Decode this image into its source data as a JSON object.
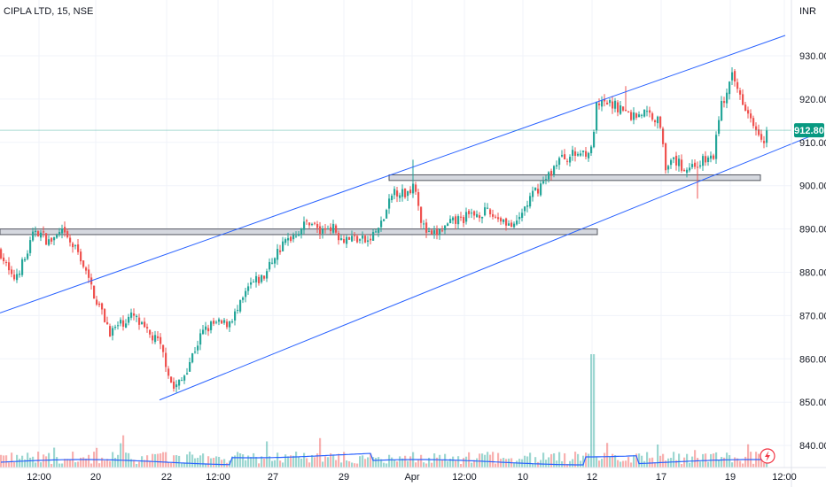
{
  "chart_data": {
    "type": "candlestick",
    "title": "CIPLA LTD, 15, NSE",
    "currency": "INR",
    "current_price": "912.80",
    "ylim": [
      832,
      942
    ],
    "y_ticks": [
      "930.00",
      "920.00",
      "910.00",
      "900.00",
      "890.00",
      "880.00",
      "870.00",
      "860.00",
      "850.00",
      "840.00"
    ],
    "x_ticks": [
      "12:00",
      "20",
      "22",
      "12:00",
      "27",
      "29",
      "Apr",
      "12:00",
      "10",
      "12",
      "17",
      "19",
      "12:00"
    ],
    "price_path": [
      [
        0,
        885
      ],
      [
        14,
        878
      ],
      [
        28,
        883
      ],
      [
        40,
        890
      ],
      [
        55,
        887
      ],
      [
        70,
        889
      ],
      [
        90,
        884
      ],
      [
        100,
        878
      ],
      [
        112,
        872
      ],
      [
        125,
        866
      ],
      [
        135,
        868
      ],
      [
        150,
        870
      ],
      [
        165,
        866
      ],
      [
        178,
        864
      ],
      [
        186,
        860
      ],
      [
        195,
        853
      ],
      [
        205,
        855
      ],
      [
        215,
        860
      ],
      [
        228,
        866
      ],
      [
        240,
        868
      ],
      [
        255,
        868
      ],
      [
        268,
        871
      ],
      [
        282,
        877
      ],
      [
        298,
        879
      ],
      [
        310,
        884
      ],
      [
        322,
        887
      ],
      [
        338,
        890
      ],
      [
        350,
        892
      ],
      [
        362,
        889
      ],
      [
        372,
        891
      ],
      [
        385,
        888
      ],
      [
        400,
        888
      ],
      [
        415,
        887
      ],
      [
        430,
        891
      ],
      [
        445,
        899
      ],
      [
        458,
        898
      ],
      [
        468,
        901
      ],
      [
        476,
        891
      ],
      [
        486,
        888
      ],
      [
        500,
        890
      ],
      [
        515,
        892
      ],
      [
        530,
        893
      ],
      [
        545,
        894
      ],
      [
        558,
        893
      ],
      [
        570,
        892
      ],
      [
        580,
        890
      ],
      [
        592,
        895
      ],
      [
        605,
        899
      ],
      [
        618,
        902
      ],
      [
        630,
        906
      ],
      [
        645,
        907
      ],
      [
        660,
        908
      ],
      [
        668,
        908
      ],
      [
        672,
        918
      ],
      [
        685,
        919
      ],
      [
        700,
        918
      ],
      [
        712,
        916
      ],
      [
        725,
        917
      ],
      [
        738,
        916
      ],
      [
        746,
        914
      ],
      [
        752,
        903
      ],
      [
        760,
        906
      ],
      [
        772,
        904
      ],
      [
        785,
        905
      ],
      [
        798,
        906
      ],
      [
        806,
        907
      ],
      [
        812,
        918
      ],
      [
        820,
        921
      ],
      [
        826,
        925
      ],
      [
        835,
        921
      ],
      [
        845,
        917
      ],
      [
        855,
        913
      ],
      [
        862,
        911
      ],
      [
        866,
        912.8
      ]
    ],
    "spikes": [
      {
        "x": 467,
        "high": 906
      },
      {
        "x": 707,
        "high": 923
      },
      {
        "x": 788,
        "low": 897
      }
    ],
    "channel_upper": [
      [
        0,
        870.6
      ],
      [
        886,
        934.7
      ]
    ],
    "channel_lower": [
      [
        180,
        850.5
      ],
      [
        925,
        912.3
      ]
    ],
    "zones": [
      {
        "x1": 0,
        "x2": 674,
        "low": 888.7,
        "high": 890.0
      },
      {
        "x1": 439,
        "x2": 858,
        "low": 901.2,
        "high": 902.5
      }
    ],
    "volume_ma_color": "#2962ff",
    "colors": {
      "up": "#26a69a",
      "down": "#ef5350",
      "channel": "#2962ff",
      "zone_fill": "#d1d4dc",
      "zone_stroke": "#434651",
      "current_price_bg": "#089981",
      "current_price_line": "#089981"
    },
    "icons": {
      "replay": "lightning-icon"
    }
  }
}
